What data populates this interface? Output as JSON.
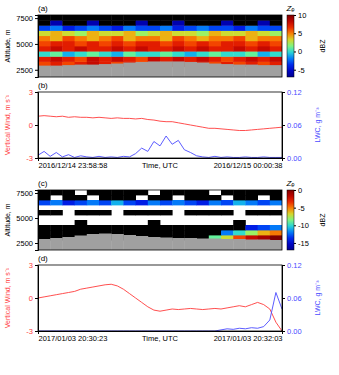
{
  "chart_data": [
    {
      "type": "heatmap",
      "label": "(a)",
      "x": [
        2.5,
        7.5,
        12.5,
        17.5,
        22.5,
        27.5,
        32.5,
        37.5,
        42.5,
        47.5,
        52.5,
        57.5,
        62.5,
        67.5,
        72.5,
        77.5,
        82.5,
        87.5,
        92.5,
        97.5
      ],
      "y": [
        2050,
        2550,
        3050,
        3550,
        4050,
        4550,
        5050,
        5550,
        6050,
        6550,
        7050,
        7550
      ],
      "z": [
        [
          null,
          null,
          null,
          null,
          null,
          null,
          null,
          null,
          null,
          null,
          null,
          null,
          null,
          null,
          null,
          null,
          null,
          null,
          null,
          null
        ],
        [
          null,
          null,
          null,
          null,
          null,
          null,
          null,
          null,
          null,
          null,
          null,
          null,
          null,
          null,
          null,
          null,
          null,
          null,
          null,
          null
        ],
        [
          6,
          7,
          6,
          7,
          8,
          7,
          6,
          7,
          6,
          7,
          6,
          7,
          8,
          7,
          6,
          7,
          6,
          7,
          6,
          7
        ],
        [
          7,
          8,
          7,
          6,
          8,
          7,
          8,
          7,
          6,
          8,
          7,
          8,
          7,
          8,
          7,
          6,
          7,
          8,
          7,
          8
        ],
        [
          0,
          1,
          -1,
          0,
          1,
          0,
          -1,
          1,
          0,
          0,
          1,
          0,
          -1,
          0,
          1,
          0,
          0,
          1,
          -1,
          0
        ],
        [
          7,
          8,
          7,
          8,
          7,
          7,
          8,
          7,
          8,
          7,
          7,
          8,
          7,
          8,
          7,
          7,
          8,
          7,
          8,
          7
        ],
        [
          6,
          7,
          7,
          6,
          7,
          6,
          7,
          6,
          7,
          7,
          6,
          7,
          6,
          7,
          6,
          7,
          7,
          6,
          7,
          6
        ],
        [
          5,
          4,
          6,
          5,
          4,
          5,
          6,
          4,
          5,
          5,
          4,
          6,
          5,
          4,
          5,
          5,
          6,
          4,
          5,
          5
        ],
        [
          3,
          4,
          3,
          2,
          4,
          3,
          3,
          4,
          2,
          3,
          4,
          3,
          3,
          2,
          4,
          3,
          3,
          4,
          3,
          2
        ],
        [
          -3,
          -2,
          -4,
          -3,
          -2,
          -3,
          -4,
          -2,
          -3,
          -3,
          -2,
          -4,
          -3,
          -2,
          -3,
          -3,
          -4,
          -2,
          -3,
          -3
        ],
        [
          -10,
          -6,
          -10,
          -10,
          -6,
          -10,
          -10,
          -10,
          -6,
          -10,
          -10,
          -6,
          -10,
          -10,
          -10,
          -6,
          -10,
          -10,
          -6,
          -10
        ],
        [
          -10,
          -10,
          -10,
          -10,
          -10,
          -10,
          -10,
          -10,
          -10,
          -10,
          -10,
          -10,
          -10,
          -10,
          -10,
          -10,
          -10,
          -10,
          -10,
          -10
        ]
      ],
      "surface": [
        2900,
        2900,
        2950,
        3000,
        3000,
        3050,
        3100,
        3200,
        3250,
        3300,
        3300,
        3300,
        3250,
        3200,
        3100,
        3050,
        3000,
        3000,
        2950,
        2950
      ],
      "xlim": [
        0,
        100
      ],
      "ylim": [
        1800,
        7800
      ],
      "yticks": [
        2500,
        5000,
        7500
      ],
      "y_label": "Altitude, m",
      "tick_labels": "y",
      "colorbar_range": [
        -7,
        10
      ],
      "colorbar_ticks": [
        -5,
        0,
        5,
        10
      ],
      "colorbar_title": "Zₑ",
      "colorbar_label": "dBZ"
    },
    {
      "type": "line",
      "label": "(b)",
      "x": [
        0,
        2.5,
        5,
        7.5,
        10,
        12.5,
        15,
        17.5,
        20,
        22.5,
        25,
        27.5,
        30,
        32.5,
        35,
        37.5,
        40,
        42.5,
        45,
        47.5,
        50,
        52.5,
        55,
        57.5,
        60,
        62.5,
        65,
        67.5,
        70,
        72.5,
        75,
        77.5,
        80,
        82.5,
        85,
        87.5,
        90,
        92.5,
        95,
        97.5,
        100
      ],
      "xlim": [
        0,
        100
      ],
      "xticks": [
        {
          "value": 0,
          "label": "2016/12/14 23:58:58"
        },
        {
          "value": 100,
          "label": "2016/12/15 00:00:38"
        }
      ],
      "x_label": "Time, UTC",
      "ylim": [
        -3,
        3
      ],
      "yticks": [
        -3,
        0,
        3
      ],
      "y_label": "Vertical Wind, m s⁻¹",
      "y2lim": [
        0,
        0.12
      ],
      "y2ticks": [
        {
          "value": 0,
          "label": "0.00"
        },
        0.06,
        0.12
      ],
      "y2_label": "LWC, g m⁻³",
      "series": [
        {
          "color": "#ff3b3b",
          "values": [
            0.8,
            0.85,
            0.8,
            0.75,
            0.8,
            0.7,
            0.75,
            0.7,
            0.7,
            0.65,
            0.7,
            0.65,
            0.6,
            0.65,
            0.6,
            0.6,
            0.55,
            0.6,
            0.5,
            0.45,
            0.35,
            0.3,
            0.3,
            0.2,
            0.1,
            0.0,
            -0.1,
            -0.2,
            -0.3,
            -0.3,
            -0.35,
            -0.4,
            -0.45,
            -0.5,
            -0.5,
            -0.45,
            -0.4,
            -0.35,
            -0.3,
            -0.25,
            -0.2
          ]
        },
        {
          "color": "#4b4bff",
          "axis": "y2",
          "values": [
            0.005,
            0.012,
            0.003,
            0.01,
            0.002,
            0.006,
            0.001,
            0.004,
            0.002,
            0.001,
            0.003,
            0.001,
            0.002,
            0.001,
            0.003,
            0.002,
            0.008,
            0.018,
            0.012,
            0.03,
            0.022,
            0.04,
            0.025,
            0.032,
            0.015,
            0.01,
            0.004,
            0.002,
            0.001,
            0.003,
            0.001,
            0.002,
            0.001,
            0.001,
            0.002,
            0.001,
            0.001,
            0.002,
            0.001,
            0.001,
            0.001
          ]
        }
      ]
    },
    {
      "type": "heatmap",
      "label": "(c)",
      "x": [
        2.5,
        7.5,
        12.5,
        17.5,
        22.5,
        27.5,
        32.5,
        37.5,
        42.5,
        47.5,
        52.5,
        57.5,
        62.5,
        67.5,
        72.5,
        77.5,
        82.5,
        87.5,
        92.5,
        97.5
      ],
      "y": [
        2050,
        2550,
        3050,
        3550,
        4050,
        4550,
        5050,
        5550,
        6050,
        6550,
        7050,
        7550
      ],
      "z": [
        [
          null,
          null,
          null,
          null,
          null,
          null,
          null,
          null,
          null,
          null,
          null,
          null,
          null,
          null,
          null,
          null,
          null,
          null,
          null,
          null
        ],
        [
          null,
          null,
          null,
          null,
          null,
          null,
          null,
          null,
          null,
          null,
          null,
          null,
          null,
          null,
          null,
          null,
          null,
          null,
          null,
          null
        ],
        [
          -20,
          -20,
          -20,
          -20,
          -20,
          -20,
          -20,
          -20,
          -20,
          -20,
          -20,
          -20,
          -20,
          -20,
          -9,
          -7,
          -4,
          -2,
          -1,
          0
        ],
        [
          -20,
          -20,
          -20,
          -20,
          -20,
          -20,
          -20,
          -20,
          -20,
          -20,
          -20,
          -20,
          -20,
          -20,
          -20,
          -12,
          -10,
          -8,
          -6,
          -5
        ],
        [
          -20,
          -20,
          -20,
          -20,
          -20,
          -20,
          -20,
          -20,
          -20,
          -20,
          -20,
          -20,
          -20,
          -20,
          -20,
          -20,
          -20,
          -14,
          -13,
          -12
        ],
        [
          null,
          null,
          null,
          -20,
          null,
          null,
          null,
          null,
          null,
          -20,
          null,
          null,
          null,
          null,
          null,
          null,
          -20,
          null,
          null,
          null
        ],
        [
          null,
          null,
          null,
          null,
          null,
          null,
          null,
          null,
          null,
          null,
          null,
          null,
          null,
          null,
          null,
          null,
          null,
          null,
          null,
          null
        ],
        [
          -20,
          -20,
          null,
          -20,
          -20,
          -20,
          null,
          -20,
          -20,
          -20,
          -20,
          null,
          -20,
          -20,
          -20,
          -20,
          null,
          -20,
          -20,
          -20
        ],
        [
          null,
          null,
          null,
          null,
          null,
          null,
          null,
          null,
          null,
          null,
          null,
          null,
          null,
          null,
          null,
          null,
          null,
          null,
          null,
          null
        ],
        [
          -13,
          -12,
          -14,
          -13,
          -12,
          -13,
          -11,
          -13,
          -14,
          -12,
          -13,
          -12,
          -13,
          -14,
          -12,
          -13,
          -11,
          -12,
          -13,
          -12
        ],
        [
          -20,
          null,
          -20,
          -20,
          null,
          -20,
          -20,
          -20,
          null,
          -20,
          -20,
          null,
          -20,
          -20,
          -20,
          null,
          -20,
          -20,
          null,
          -20
        ],
        [
          -20,
          -20,
          -20,
          null,
          -20,
          -20,
          -20,
          -20,
          -20,
          null,
          -20,
          -20,
          -20,
          -20,
          null,
          -20,
          -20,
          -20,
          -20,
          -20
        ]
      ],
      "surface": [
        2900,
        3000,
        3100,
        3250,
        3400,
        3450,
        3400,
        3300,
        3200,
        3100,
        3050,
        3000,
        3000,
        2950,
        2950,
        2900,
        2900,
        2850,
        2850,
        2800
      ],
      "xlim": [
        0,
        100
      ],
      "ylim": [
        1800,
        7800
      ],
      "yticks": [
        2500,
        5000,
        7500
      ],
      "y_label": "Altitude, m",
      "tick_labels": "y",
      "colorbar_range": [
        -17,
        0
      ],
      "colorbar_ticks": [
        -15,
        -10,
        -5,
        0
      ],
      "colorbar_title": "Zₑ",
      "colorbar_label": "dBZ"
    },
    {
      "type": "line",
      "label": "(d)",
      "x": [
        0,
        2.5,
        5,
        7.5,
        10,
        12.5,
        15,
        17.5,
        20,
        22.5,
        25,
        27.5,
        30,
        32.5,
        35,
        37.5,
        40,
        42.5,
        45,
        47.5,
        50,
        52.5,
        55,
        57.5,
        60,
        62.5,
        65,
        67.5,
        70,
        72.5,
        75,
        77.5,
        80,
        82.5,
        85,
        87.5,
        90,
        92.5,
        95,
        97.5,
        100
      ],
      "xlim": [
        0,
        100
      ],
      "xticks": [
        {
          "value": 0,
          "label": "2017/01/03 20:30:23"
        },
        {
          "value": 100,
          "label": "2017/01/03 20:32:03"
        }
      ],
      "x_label": "Time, UTC",
      "ylim": [
        -3,
        3
      ],
      "yticks": [
        -3,
        0,
        3
      ],
      "y_label": "Vertical Wind, m s⁻¹",
      "y2lim": [
        0,
        0.12
      ],
      "y2ticks": [
        {
          "value": 0,
          "label": "0.00"
        },
        0.06,
        0.12
      ],
      "y2_label": "LWC, g m⁻³",
      "series": [
        {
          "color": "#ff3b3b",
          "values": [
            0.0,
            0.1,
            0.2,
            0.3,
            0.4,
            0.5,
            0.6,
            0.8,
            0.9,
            1.0,
            1.1,
            1.2,
            1.25,
            1.1,
            0.8,
            0.4,
            0.0,
            -0.4,
            -0.8,
            -1.1,
            -1.2,
            -1.1,
            -1.0,
            -1.05,
            -1.0,
            -0.95,
            -1.0,
            -1.05,
            -1.0,
            -0.95,
            -1.0,
            -0.9,
            -0.8,
            -0.7,
            -0.8,
            -0.6,
            -0.4,
            -0.6,
            -1.0,
            -2.2,
            -3.0
          ]
        },
        {
          "color": "#4b4bff",
          "axis": "y2",
          "values": [
            0,
            0,
            0,
            0,
            0,
            0,
            0,
            0,
            0,
            0,
            0,
            0,
            0,
            0,
            0,
            0,
            0,
            0,
            0,
            0,
            0,
            0,
            0,
            0,
            0,
            0,
            0,
            0,
            0,
            0,
            0.002,
            0.004,
            0.003,
            0.005,
            0.004,
            0.006,
            0.005,
            0.008,
            0.02,
            0.07,
            0.04
          ]
        }
      ]
    }
  ]
}
